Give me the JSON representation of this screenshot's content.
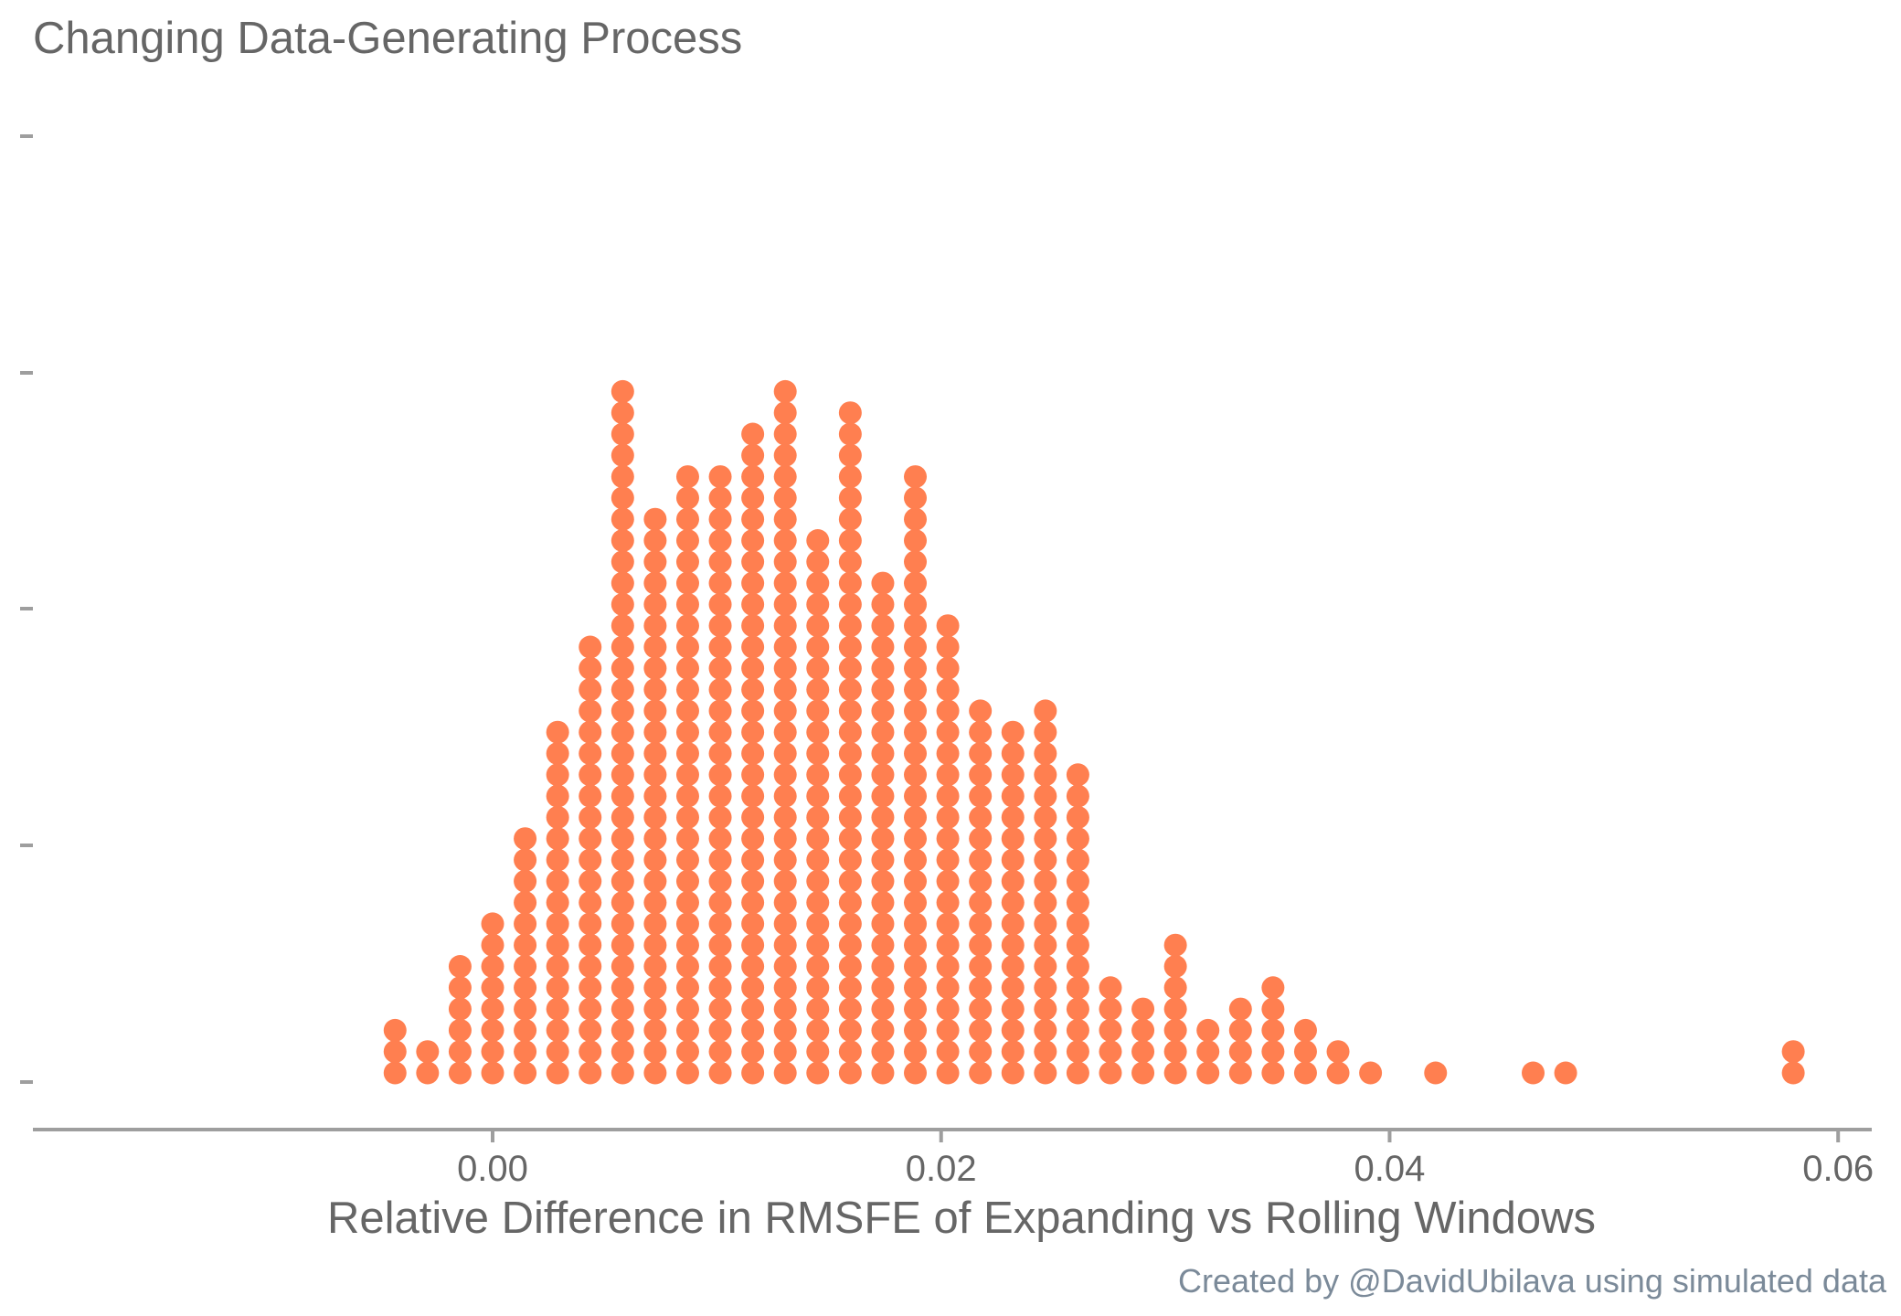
{
  "chart_data": {
    "type": "dotplot",
    "title": "Changing Data-Generating Process",
    "xlabel": "Relative Difference in RMSFE of Expanding vs Rolling Windows",
    "ylabel": "",
    "caption": "Created by @DavidUbilava using simulated data",
    "xlim": [
      -0.0205,
      0.0615
    ],
    "x_ticks": [
      0.0,
      0.02,
      0.04,
      0.06
    ],
    "x_tick_labels": [
      "0.00",
      "0.02",
      "0.04",
      "0.06"
    ],
    "grid": false,
    "dot_color": "#ff7f50",
    "axis_color": "#9e9e9e",
    "text_color": "#666666",
    "caption_color": "#7b8a99",
    "bins": [
      {
        "x": -0.00435,
        "count": 3
      },
      {
        "x": -0.0029,
        "count": 2
      },
      {
        "x": -0.00145,
        "count": 6
      },
      {
        "x": 0.0,
        "count": 8
      },
      {
        "x": 0.00145,
        "count": 12
      },
      {
        "x": 0.0029,
        "count": 17
      },
      {
        "x": 0.00435,
        "count": 21
      },
      {
        "x": 0.0058,
        "count": 33
      },
      {
        "x": 0.00725,
        "count": 27
      },
      {
        "x": 0.0087,
        "count": 29
      },
      {
        "x": 0.01015,
        "count": 29
      },
      {
        "x": 0.0116,
        "count": 31
      },
      {
        "x": 0.01305,
        "count": 33
      },
      {
        "x": 0.0145,
        "count": 26
      },
      {
        "x": 0.01595,
        "count": 32
      },
      {
        "x": 0.0174,
        "count": 24
      },
      {
        "x": 0.01885,
        "count": 29
      },
      {
        "x": 0.0203,
        "count": 22
      },
      {
        "x": 0.02175,
        "count": 18
      },
      {
        "x": 0.0232,
        "count": 17
      },
      {
        "x": 0.02465,
        "count": 18
      },
      {
        "x": 0.0261,
        "count": 15
      },
      {
        "x": 0.02755,
        "count": 5
      },
      {
        "x": 0.029,
        "count": 4
      },
      {
        "x": 0.03045,
        "count": 7
      },
      {
        "x": 0.0319,
        "count": 3
      },
      {
        "x": 0.03335,
        "count": 4
      },
      {
        "x": 0.0348,
        "count": 5
      },
      {
        "x": 0.03625,
        "count": 3
      },
      {
        "x": 0.0377,
        "count": 2
      },
      {
        "x": 0.03915,
        "count": 1
      },
      {
        "x": 0.04205,
        "count": 1
      },
      {
        "x": 0.0464,
        "count": 1
      },
      {
        "x": 0.04785,
        "count": 1
      },
      {
        "x": 0.058,
        "count": 2
      }
    ]
  }
}
